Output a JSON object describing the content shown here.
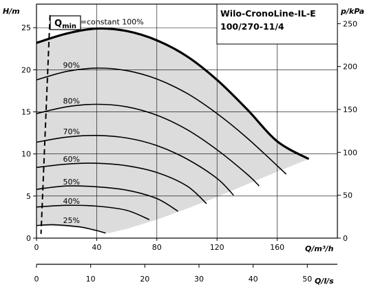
{
  "chart_data": {
    "type": "line",
    "title_line1": "Wilo-CronoLine-IL-E",
    "title_line2": "100/270-11/4",
    "qmin_label": "Q",
    "qmin_sub": "min",
    "y_label_left": "H/m",
    "y_label_right": "p/kPa",
    "x_label_top": "Q/m³/h",
    "x_label_bottom": "Q/l/s",
    "x_m3h": {
      "ticks": [
        0,
        40,
        80,
        120,
        160
      ],
      "range": [
        0,
        200
      ]
    },
    "y_m": {
      "ticks": [
        0,
        5,
        10,
        15,
        20,
        25
      ],
      "range": [
        0,
        27.8
      ]
    },
    "y_kpa": {
      "ticks": [
        0,
        50,
        100,
        150,
        200,
        250
      ]
    },
    "x_ls": {
      "ticks": [
        0,
        10,
        20,
        30,
        40,
        50
      ]
    },
    "operating_area": [
      [
        0,
        23.2
      ],
      [
        20,
        24.3
      ],
      [
        40,
        24.9
      ],
      [
        60,
        24.6
      ],
      [
        80,
        23.5
      ],
      [
        100,
        21.6
      ],
      [
        120,
        18.8
      ],
      [
        140,
        15.3
      ],
      [
        160,
        11.5
      ],
      [
        181,
        9.4
      ],
      [
        160,
        7.9
      ],
      [
        140,
        6.4
      ],
      [
        120,
        4.9
      ],
      [
        100,
        3.5
      ],
      [
        80,
        2.2
      ],
      [
        60,
        1.1
      ],
      [
        48,
        0.6
      ],
      [
        40,
        0.9
      ],
      [
        30,
        1.2
      ],
      [
        15,
        1.4
      ],
      [
        0,
        1.5
      ]
    ],
    "max_curve": {
      "label": "n=constant 100%",
      "x": [
        0,
        20,
        40,
        60,
        80,
        100,
        120,
        140,
        160,
        181
      ],
      "y": [
        23.2,
        24.3,
        24.9,
        24.6,
        23.5,
        21.6,
        18.8,
        15.3,
        11.5,
        9.4
      ]
    },
    "series": [
      {
        "name": "90%",
        "x": [
          0,
          20,
          40,
          60,
          80,
          100,
          120,
          140,
          166
        ],
        "y": [
          18.8,
          19.8,
          20.2,
          19.9,
          18.9,
          17.2,
          14.8,
          11.9,
          7.6
        ]
      },
      {
        "name": "80%",
        "x": [
          0,
          20,
          40,
          60,
          80,
          100,
          120,
          140,
          148
        ],
        "y": [
          14.8,
          15.6,
          15.9,
          15.6,
          14.6,
          12.9,
          10.5,
          7.6,
          6.2
        ]
      },
      {
        "name": "70%",
        "x": [
          0,
          20,
          40,
          60,
          80,
          100,
          120,
          131
        ],
        "y": [
          11.4,
          12.0,
          12.2,
          11.9,
          11.0,
          9.4,
          7.1,
          5.1
        ]
      },
      {
        "name": "60%",
        "x": [
          0,
          20,
          40,
          60,
          80,
          100,
          113
        ],
        "y": [
          8.4,
          8.8,
          8.9,
          8.6,
          7.8,
          6.2,
          4.1
        ]
      },
      {
        "name": "50%",
        "x": [
          0,
          20,
          40,
          60,
          80,
          94
        ],
        "y": [
          5.8,
          6.2,
          6.1,
          5.7,
          4.7,
          3.2
        ]
      },
      {
        "name": "40%",
        "x": [
          0,
          20,
          40,
          60,
          75
        ],
        "y": [
          3.7,
          3.9,
          3.8,
          3.3,
          2.2
        ]
      },
      {
        "name": "25%",
        "x": [
          0,
          10,
          20,
          30,
          40,
          46
        ],
        "y": [
          1.5,
          1.6,
          1.5,
          1.3,
          0.9,
          0.6
        ]
      }
    ],
    "qmin_line": {
      "x": [
        9,
        3
      ],
      "y": [
        26.5,
        0.5
      ]
    },
    "grid": true
  }
}
